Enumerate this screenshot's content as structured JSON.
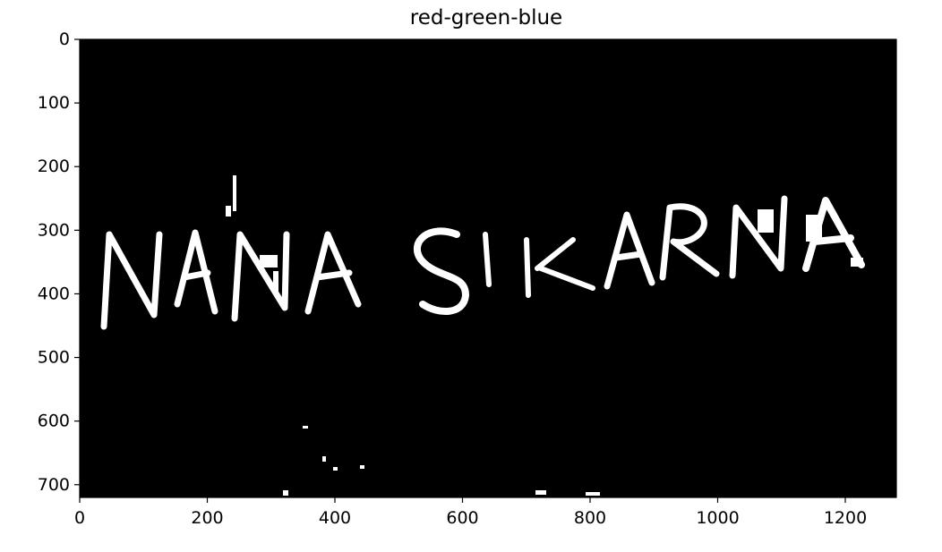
{
  "chart_data": {
    "type": "image",
    "title": "red-green-blue",
    "xlabel": "",
    "ylabel": "",
    "xlim": [
      0,
      1280
    ],
    "ylim": [
      720,
      0
    ],
    "xticks": [
      0,
      200,
      400,
      600,
      800,
      1000,
      1200
    ],
    "yticks": [
      0,
      100,
      200,
      300,
      400,
      500,
      600,
      700
    ],
    "xtick_labels": [
      "0",
      "200",
      "400",
      "600",
      "800",
      "1000",
      "1200"
    ],
    "ytick_labels": [
      "0",
      "100",
      "200",
      "300",
      "400",
      "500",
      "600",
      "700"
    ],
    "grid": false,
    "colormap": "binary (black background, white foreground)",
    "image_text": "NANA SIKARNA",
    "colors": {
      "background": "#000000",
      "foreground": "#ffffff",
      "axes": "#000000"
    }
  }
}
